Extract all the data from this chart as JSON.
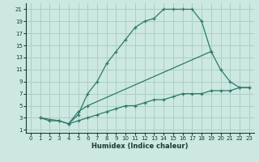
{
  "xlabel": "Humidex (Indice chaleur)",
  "bg_color": "#cce8e0",
  "grid_color": "#aacfc8",
  "line_color": "#2d7a6a",
  "xlim": [
    -0.5,
    23.5
  ],
  "ylim": [
    0.5,
    22
  ],
  "xticks": [
    0,
    1,
    2,
    3,
    4,
    5,
    6,
    7,
    8,
    9,
    10,
    11,
    12,
    13,
    14,
    15,
    16,
    17,
    18,
    19,
    20,
    21,
    22,
    23
  ],
  "yticks": [
    1,
    3,
    5,
    7,
    9,
    11,
    13,
    15,
    17,
    19,
    21
  ],
  "series": [
    {
      "x": [
        1,
        2,
        3,
        4,
        5,
        6,
        7,
        8,
        9,
        10,
        11,
        12,
        13,
        14,
        15,
        16,
        17,
        18,
        19
      ],
      "y": [
        3,
        2.5,
        2.5,
        2,
        3.5,
        7,
        9,
        12,
        14,
        16,
        18,
        19,
        19.5,
        21,
        21,
        21,
        21,
        19,
        14
      ]
    },
    {
      "x": [
        1,
        3,
        4,
        5,
        6,
        19,
        20,
        21,
        22,
        23
      ],
      "y": [
        3,
        2.5,
        2,
        4,
        5,
        14,
        11,
        9,
        8,
        8
      ]
    },
    {
      "x": [
        4,
        5,
        6,
        7,
        8,
        9,
        10,
        11,
        12,
        13,
        14,
        15,
        16,
        17,
        18,
        19,
        20,
        21,
        22,
        23
      ],
      "y": [
        2,
        2.5,
        3,
        3.5,
        4,
        4.5,
        5,
        5,
        5.5,
        6,
        6,
        6.5,
        7,
        7,
        7,
        7.5,
        7.5,
        7.5,
        8,
        8
      ]
    }
  ]
}
